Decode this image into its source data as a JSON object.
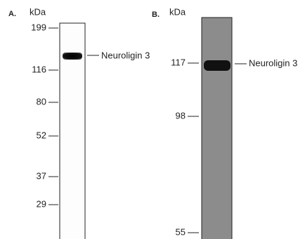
{
  "panels": [
    {
      "label": "A.",
      "unit": "kDa",
      "markers": [
        199,
        116,
        80,
        52,
        37,
        29
      ],
      "band_label": "Neuroligin 3"
    },
    {
      "label": "B.",
      "unit": "kDa",
      "markers": [
        117,
        98,
        55
      ],
      "band_label": "Neuroligin 3"
    }
  ]
}
